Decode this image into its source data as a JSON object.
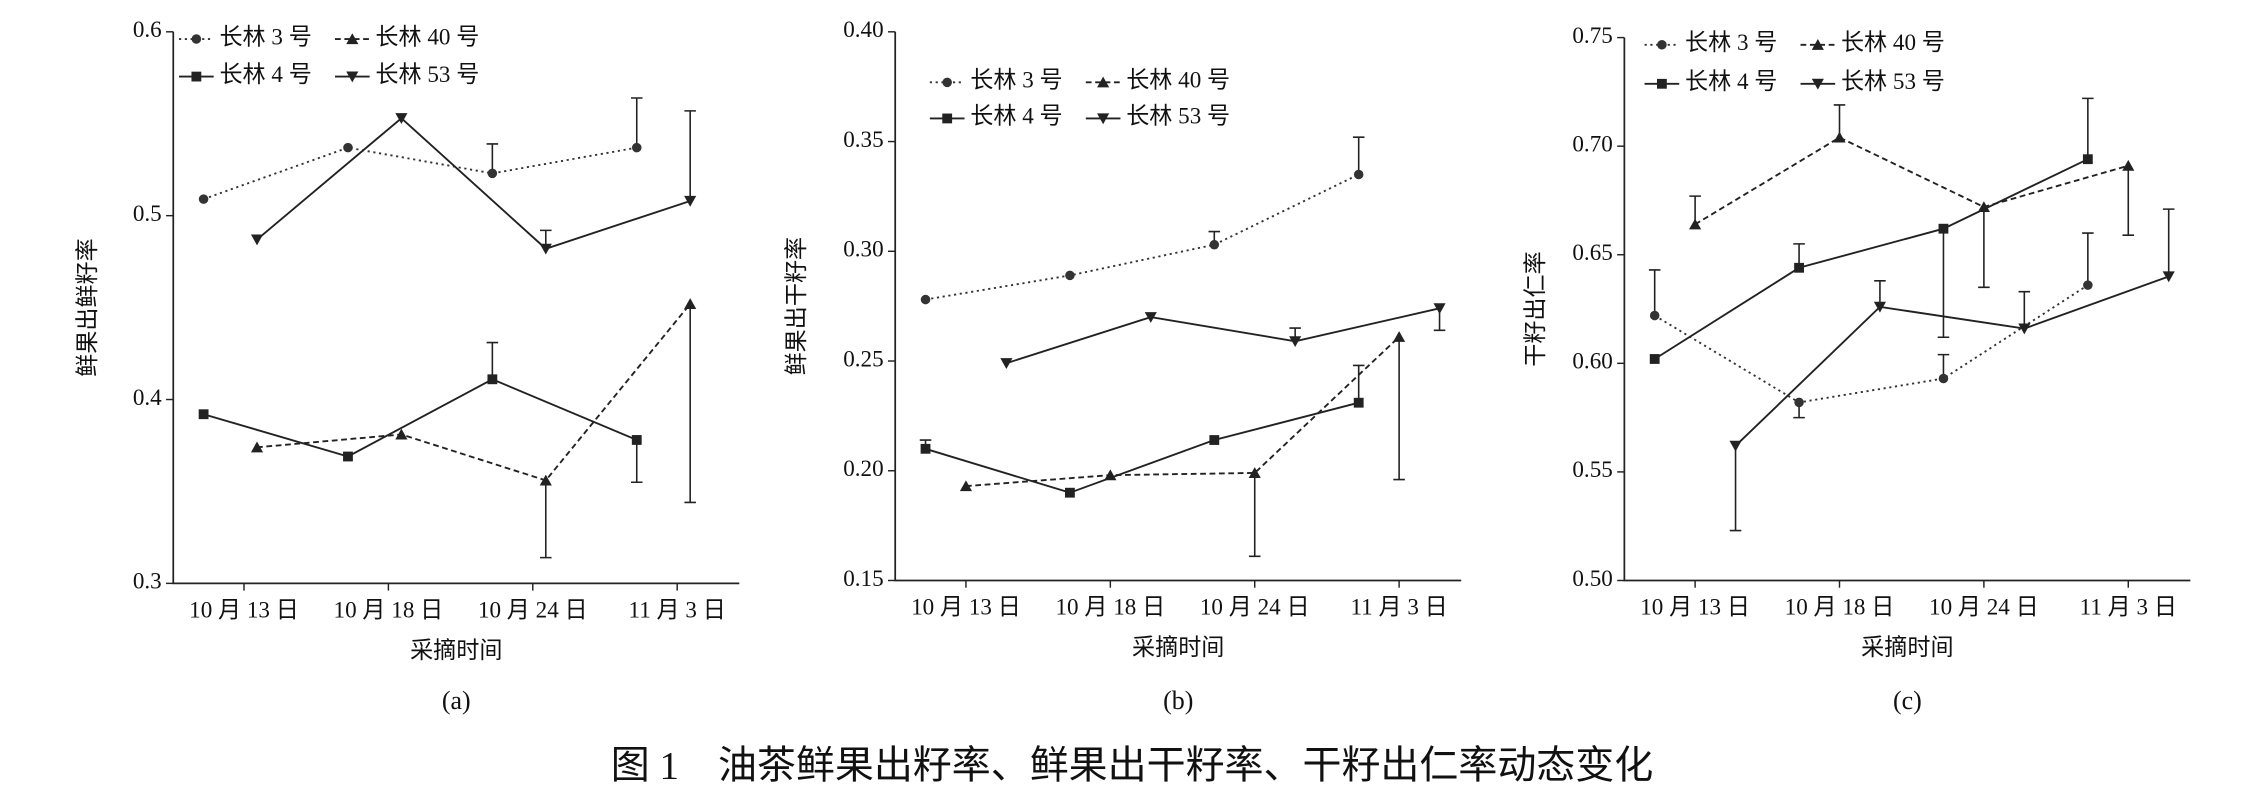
{
  "caption": "图 1　油茶鲜果出籽率、鲜果出干籽率、干籽出仁率动态变化",
  "chart_data": [
    {
      "type": "line",
      "panel_label": "(a)",
      "x_label": "采摘时间",
      "y_label": "鲜果出鲜籽率",
      "categories": [
        "10 月 13 日",
        "10 月 18 日",
        "10 月 24 日",
        "11 月 3 日"
      ],
      "ylim": [
        0.3,
        0.6
      ],
      "yticks": [
        0.3,
        0.4,
        0.5,
        0.6
      ],
      "series": [
        {
          "name": "长林 3 号",
          "marker": "circle",
          "line": "dotted",
          "color": "#333",
          "values": [
            0.509,
            0.537,
            0.523,
            0.537
          ],
          "errors_up": [
            null,
            null,
            0.016,
            0.027
          ],
          "errors_down": [
            null,
            null,
            null,
            null
          ]
        },
        {
          "name": "长林 4 号",
          "marker": "square",
          "line": "solid",
          "color": "#222",
          "values": [
            0.392,
            0.369,
            0.411,
            0.378
          ],
          "errors_up": [
            null,
            null,
            0.02,
            null
          ],
          "errors_down": [
            null,
            null,
            null,
            0.023
          ]
        },
        {
          "name": "长林 40 号",
          "marker": "triangle-up",
          "line": "dashed",
          "color": "#222",
          "values": [
            0.374,
            0.381,
            0.356,
            0.452
          ],
          "errors_up": [
            null,
            null,
            null,
            null
          ],
          "errors_down": [
            null,
            null,
            0.042,
            0.108
          ]
        },
        {
          "name": "长林 53 号",
          "marker": "triangle-down",
          "line": "solid",
          "color": "#222",
          "values": [
            0.487,
            0.553,
            0.482,
            0.508
          ],
          "errors_up": [
            null,
            null,
            0.01,
            0.049
          ],
          "errors_down": [
            null,
            null,
            null,
            null
          ]
        }
      ]
    },
    {
      "type": "line",
      "panel_label": "(b)",
      "x_label": "采摘时间",
      "y_label": "鲜果出干籽率",
      "categories": [
        "10 月 13 日",
        "10 月 18 日",
        "10 月 24 日",
        "11 月 3 日"
      ],
      "ylim": [
        0.15,
        0.4
      ],
      "yticks": [
        0.15,
        {
          "value": 0.2,
          "label": "0.20"
        },
        0.25,
        {
          "value": 0.3,
          "label": "0.30"
        },
        0.35,
        {
          "value": 0.4,
          "label": "0.40"
        }
      ],
      "series": [
        {
          "name": "长林 3 号",
          "marker": "circle",
          "line": "dotted",
          "color": "#333",
          "values": [
            0.278,
            0.289,
            0.303,
            0.335
          ],
          "errors_up": [
            null,
            null,
            0.006,
            0.017
          ],
          "errors_down": [
            null,
            null,
            null,
            null
          ]
        },
        {
          "name": "长林 4 号",
          "marker": "square",
          "line": "solid",
          "color": "#222",
          "values": [
            0.21,
            0.19,
            0.214,
            0.231
          ],
          "errors_up": [
            0.004,
            null,
            null,
            0.017
          ],
          "errors_down": [
            null,
            null,
            null,
            null
          ]
        },
        {
          "name": "长林 40 号",
          "marker": "triangle-up",
          "line": "dashed",
          "color": "#222",
          "values": [
            0.193,
            0.198,
            0.199,
            0.261
          ],
          "errors_up": [
            null,
            null,
            null,
            null
          ],
          "errors_down": [
            null,
            null,
            0.038,
            0.065
          ]
        },
        {
          "name": "长林 53 号",
          "marker": "triangle-down",
          "line": "solid",
          "color": "#222",
          "values": [
            0.249,
            0.27,
            0.259,
            0.274
          ],
          "errors_up": [
            null,
            null,
            0.006,
            null
          ],
          "errors_down": [
            null,
            null,
            null,
            0.01
          ]
        }
      ]
    },
    {
      "type": "line",
      "panel_label": "(c)",
      "x_label": "采摘时间",
      "y_label": "干籽出仁率",
      "categories": [
        "10 月 13 日",
        "10 月 18 日",
        "10 月 24 日",
        "11 月 3 日"
      ],
      "ylim": [
        0.5,
        0.75
      ],
      "yticks": [
        {
          "value": 0.5,
          "label": "0.50"
        },
        0.55,
        {
          "value": 0.6,
          "label": "0.60"
        },
        0.65,
        {
          "value": 0.7,
          "label": "0.70"
        },
        0.75
      ],
      "series": [
        {
          "name": "长林 3 号",
          "marker": "circle",
          "line": "dotted",
          "color": "#333",
          "values": [
            0.622,
            0.582,
            0.593,
            0.636
          ],
          "errors_up": [
            0.021,
            null,
            0.011,
            0.024
          ],
          "errors_down": [
            null,
            0.007,
            null,
            null
          ]
        },
        {
          "name": "长林 4 号",
          "marker": "square",
          "line": "solid",
          "color": "#222",
          "values": [
            0.602,
            0.644,
            0.662,
            0.694
          ],
          "errors_up": [
            null,
            0.011,
            null,
            0.028
          ],
          "errors_down": [
            null,
            null,
            0.05,
            null
          ]
        },
        {
          "name": "长林 40 号",
          "marker": "triangle-up",
          "line": "dashed",
          "color": "#222",
          "values": [
            0.664,
            0.704,
            0.672,
            0.691
          ],
          "errors_up": [
            0.013,
            0.015,
            null,
            null
          ],
          "errors_down": [
            null,
            null,
            0.037,
            0.032
          ]
        },
        {
          "name": "长林 53 号",
          "marker": "triangle-down",
          "line": "solid",
          "color": "#222",
          "values": [
            0.562,
            0.626,
            0.616,
            0.64
          ],
          "errors_up": [
            null,
            0.012,
            0.017,
            0.031
          ],
          "errors_down": [
            0.039,
            null,
            null,
            null
          ]
        }
      ]
    }
  ]
}
